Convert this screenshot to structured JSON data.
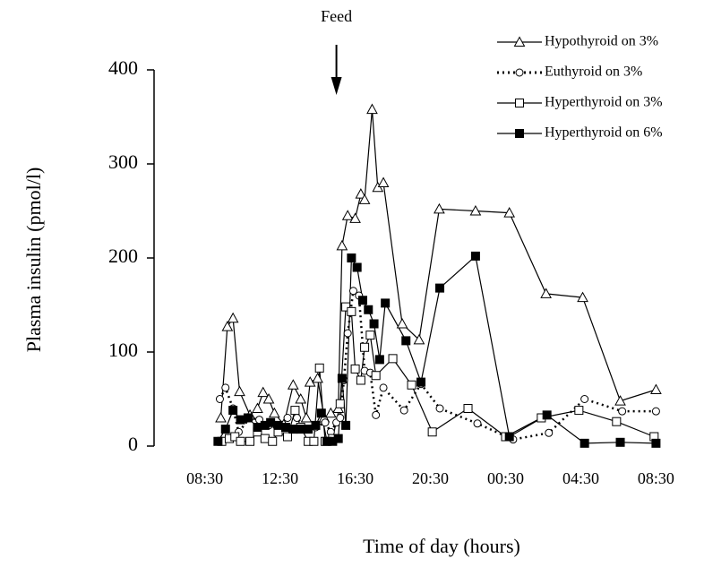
{
  "chart_data": {
    "type": "line",
    "x_label": "Time of day (hours)",
    "y_label": "Plasma insulin (pmol/l)",
    "annotation": {
      "text": "Feed",
      "x": 15.5
    },
    "xlim": [
      5.8,
      33.1
    ],
    "xticks": [
      {
        "value": 8.5,
        "label": "08:30"
      },
      {
        "value": 12.5,
        "label": "12:30"
      },
      {
        "value": 16.5,
        "label": "16:30"
      },
      {
        "value": 20.5,
        "label": "20:30"
      },
      {
        "value": 24.5,
        "label": "00:30"
      },
      {
        "value": 28.5,
        "label": "04:30"
      },
      {
        "value": 32.5,
        "label": "08:30"
      }
    ],
    "ylim": [
      0,
      400
    ],
    "yticks": [
      0,
      100,
      200,
      300,
      400
    ],
    "series": [
      {
        "name": "Hypothyroid on 3%",
        "color": "#000000",
        "dash": "solid",
        "marker": "triangle",
        "x": [
          9.35,
          9.7,
          10.0,
          10.35,
          10.9,
          11.3,
          11.6,
          11.9,
          12.2,
          12.7,
          13.2,
          13.6,
          13.9,
          14.1,
          14.5,
          14.85,
          15.2,
          15.6,
          15.8,
          16.1,
          16.5,
          16.8,
          17.0,
          17.4,
          17.7,
          18.0,
          19.0,
          19.9,
          20.97,
          22.9,
          24.7,
          26.65,
          28.6,
          30.6,
          32.5
        ],
        "values": [
          30,
          127,
          136,
          58,
          33,
          40,
          57,
          50,
          35,
          23,
          65,
          50,
          30,
          68,
          72,
          30,
          35,
          40,
          213,
          245,
          242,
          268,
          262,
          358,
          275,
          280,
          130,
          113,
          252,
          250,
          248,
          162,
          158,
          48,
          60
        ]
      },
      {
        "name": "Euthyroid on 3%",
        "color": "#000000",
        "dash": "dotted",
        "marker": "circle",
        "x": [
          9.3,
          9.6,
          10.0,
          10.3,
          10.9,
          11.4,
          11.9,
          12.4,
          12.9,
          13.4,
          13.9,
          14.4,
          14.9,
          15.2,
          15.5,
          15.7,
          15.9,
          16.1,
          16.4,
          16.7,
          17.0,
          17.3,
          17.6,
          18.0,
          19.1,
          20.0,
          21.0,
          23.0,
          24.9,
          26.8,
          28.7,
          30.7,
          32.5
        ],
        "values": [
          50,
          62,
          40,
          15,
          30,
          28,
          22,
          18,
          30,
          30,
          18,
          20,
          25,
          15,
          25,
          30,
          70,
          120,
          165,
          160,
          80,
          78,
          33,
          62,
          38,
          66,
          40,
          24,
          7,
          14,
          50,
          37,
          37
        ]
      },
      {
        "name": "Hyperthyroid on 3%",
        "color": "#000000",
        "dash": "solid",
        "marker": "square",
        "x": [
          9.4,
          9.8,
          10.1,
          10.4,
          10.9,
          11.3,
          11.7,
          12.1,
          12.4,
          12.9,
          13.3,
          13.6,
          14.0,
          14.3,
          14.6,
          14.9,
          15.3,
          15.7,
          16.0,
          16.3,
          16.5,
          16.8,
          17.0,
          17.3,
          17.6,
          18.5,
          19.5,
          20.6,
          22.5,
          24.5,
          26.4,
          28.4,
          30.4,
          32.4
        ],
        "values": [
          5,
          8,
          10,
          5,
          5,
          15,
          8,
          5,
          15,
          10,
          38,
          20,
          5,
          5,
          83,
          5,
          8,
          45,
          148,
          143,
          82,
          70,
          105,
          118,
          75,
          93,
          65,
          15,
          40,
          10,
          30,
          38,
          26,
          10
        ]
      },
      {
        "name": "Hyperthyroid on 6%",
        "color": "#000000",
        "dash": "solid",
        "marker": "filled-square",
        "x": [
          9.2,
          9.6,
          10.0,
          10.4,
          10.8,
          11.3,
          11.7,
          12.0,
          12.4,
          12.8,
          13.2,
          13.6,
          14.0,
          14.4,
          14.7,
          15.0,
          15.3,
          15.6,
          15.8,
          16.0,
          16.3,
          16.6,
          16.9,
          17.2,
          17.5,
          17.8,
          18.1,
          19.2,
          20.0,
          21.0,
          22.9,
          24.7,
          26.7,
          28.7,
          30.6,
          32.5
        ],
        "values": [
          5,
          18,
          38,
          28,
          30,
          20,
          22,
          25,
          22,
          20,
          18,
          18,
          18,
          22,
          35,
          5,
          5,
          8,
          72,
          22,
          200,
          190,
          155,
          145,
          130,
          92,
          152,
          112,
          68,
          168,
          202,
          10,
          33,
          3,
          4,
          3
        ]
      }
    ]
  }
}
